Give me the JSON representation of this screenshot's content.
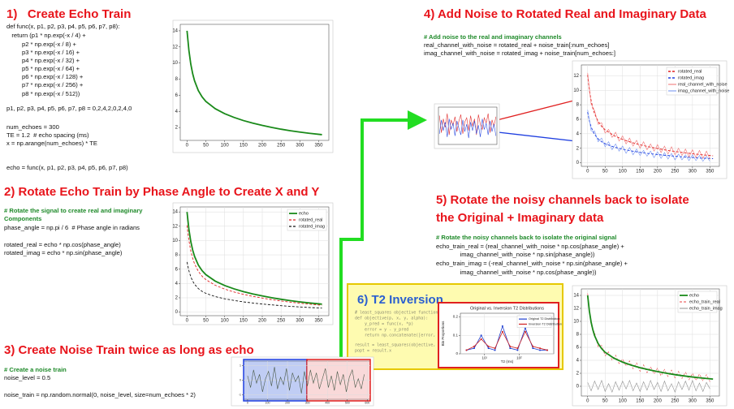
{
  "sections": [
    {
      "title_lines": [
        "1)   Create Echo Train"
      ],
      "code": [
        "def func(x, p1, p2, p3, p4, p5, p6, p7, p8):",
        "   return (p1 * np.exp(-x / 4) +",
        "         p2 * np.exp(-x / 8) +",
        "         p3 * np.exp(-x / 16) +",
        "         p4 * np.exp(-x / 32) +",
        "         p5 * np.exp(-x / 64) +",
        "         p6 * np.exp(-x / 128) +",
        "         p7 * np.exp(-x / 256) +",
        "         p8 * np.exp(-x / 512))",
        "p1, p2, p3, p4, p5, p6, p7, p8 = 0,2,4,2,0,2,4,0",
        "num_echoes = 300",
        "TE = 1.2  # echo spacing (ms)",
        "x = np.arange(num_echoes) * TE",
        "echo = func(x, p1, p2, p3, p4, p5, p6, p7, p8)"
      ]
    },
    {
      "title_lines": [
        "2) Rotate Echo Train by Phase Angle to Create X and Y"
      ],
      "code": [
        "# Rotate the signal to create real and imaginary",
        "# Components",
        "phase_angle = np.pi / 6  # Phase angle in radians",
        "rotated_real = echo * np.cos(phase_angle)",
        "rotated_imag = echo * np.sin(phase_angle)"
      ]
    },
    {
      "title_lines": [
        "3) Create Noise Train twice as long as echo"
      ],
      "code": [
        "# Create a noise train",
        "noise_level = 0.5",
        "noise_train = np.random.normal(0, noise_level, size=num_echoes * 2)"
      ]
    },
    {
      "title_lines": [
        "4) Add Noise to Rotated Real and Imaginary Data"
      ],
      "code": [
        "# Add noise to the real and imaginary channels",
        "real_channel_with_noise = rotated_real + noise_train[:num_echoes]",
        "imag_channel_with_noise = rotated_imag + noise_train[num_echoes:]"
      ]
    },
    {
      "title_lines": [
        "5) Rotate the noisy channels back to isolate",
        "the Original + Imaginary data"
      ],
      "code": [
        "# Rotate the noisy channels back to isolate the original signal",
        "echo_train_real = (real_channel_with_noise * np.cos(phase_angle) +",
        "              imag_channel_with_noise * np.sin(phase_angle))",
        "echo_train_imag = (-real_channel_with_noise * np.sin(phase_angle) +",
        "              imag_channel_with_noise * np.cos(phase_angle))"
      ]
    },
    {
      "title_lines": [
        "6) T2 Inversion"
      ],
      "code": [
        "# least_squares objective function to m",
        "def objective(p, x, y, alpha):",
        "    y_pred = func(x, *p)",
        "    error = y - y_pred",
        "    return np.concatenate([error, np.sqr",
        "result = least_squares(objective, p0, ar",
        "popt = result.x"
      ]
    }
  ],
  "chart_data": [
    {
      "type": "line",
      "x": [
        0,
        5,
        10,
        15,
        20,
        30,
        40,
        50,
        75,
        100,
        125,
        150,
        175,
        200,
        225,
        250,
        275,
        300,
        325,
        358.8
      ],
      "xlim": [
        -18,
        377
      ],
      "ylim": [
        0.4,
        14.8
      ],
      "xticks": [
        0,
        50,
        100,
        150,
        200,
        250,
        300,
        350
      ],
      "yticks": [
        2,
        4,
        6,
        8,
        10,
        12,
        14
      ],
      "grid": false,
      "series": [
        {
          "color": "#1a8a1a",
          "width": 1.8,
          "values": [
            14,
            11.56,
            9.87,
            8.68,
            7.79,
            6.58,
            5.8,
            5.24,
            4.33,
            3.72,
            3.25,
            2.86,
            2.54,
            2.26,
            2.01,
            1.79,
            1.6,
            1.43,
            1.28,
            1.11
          ]
        }
      ]
    },
    {
      "type": "line",
      "x": [
        0,
        5,
        10,
        15,
        20,
        30,
        40,
        50,
        75,
        100,
        125,
        150,
        175,
        200,
        225,
        250,
        275,
        300,
        325,
        358.8
      ],
      "xlim": [
        -18,
        377
      ],
      "ylim": [
        -0.5,
        14.7
      ],
      "xticks": [
        0,
        50,
        100,
        150,
        200,
        250,
        300,
        350
      ],
      "yticks": [
        0,
        2,
        4,
        6,
        8,
        10,
        12,
        14
      ],
      "grid": true,
      "legend": "upper right",
      "series": [
        {
          "name": "echo",
          "color": "#1a8a1a",
          "width": 1.8,
          "values": [
            14,
            11.56,
            9.87,
            8.68,
            7.79,
            6.58,
            5.8,
            5.24,
            4.33,
            3.72,
            3.25,
            2.86,
            2.54,
            2.26,
            2.01,
            1.79,
            1.6,
            1.43,
            1.28,
            1.11
          ]
        },
        {
          "name": "rotated_real",
          "color": "#e02020",
          "width": 0.9,
          "style": "dashed",
          "values": [
            12.12,
            10.01,
            8.55,
            7.52,
            6.75,
            5.7,
            5.02,
            4.54,
            3.75,
            3.22,
            2.81,
            2.48,
            2.2,
            1.96,
            1.74,
            1.55,
            1.39,
            1.24,
            1.11,
            0.96
          ]
        },
        {
          "name": "rotated_imag",
          "color": "#111111",
          "width": 0.9,
          "style": "dashed",
          "values": [
            7,
            5.78,
            4.94,
            4.34,
            3.9,
            3.29,
            2.9,
            2.62,
            2.17,
            1.86,
            1.63,
            1.43,
            1.27,
            1.13,
            1.01,
            0.9,
            0.8,
            0.72,
            0.64,
            0.56
          ]
        }
      ]
    },
    {
      "type": "line",
      "x": [
        0,
        15,
        30,
        45,
        60,
        75,
        90,
        105,
        120,
        135,
        150,
        165,
        180,
        195,
        210,
        225,
        240,
        255,
        270,
        285,
        300,
        315,
        330,
        345,
        360,
        375,
        390,
        405,
        420,
        435,
        450,
        465,
        480,
        495,
        510,
        525,
        540,
        555,
        570,
        585
      ],
      "xlim": [
        -20,
        615
      ],
      "ylim": [
        -1.3,
        1.3
      ],
      "xticks": [
        0,
        100,
        200,
        300,
        400,
        500,
        600
      ],
      "yticks": [
        -1,
        0,
        1
      ],
      "grid": true,
      "series": [
        {
          "color": "#4a5a4a",
          "width": 0.6,
          "values": [
            0.3,
            -0.5,
            0.7,
            -0.2,
            0.4,
            -0.8,
            0.1,
            0.6,
            -0.4,
            0.9,
            -0.6,
            0.2,
            -0.3,
            0.8,
            -0.7,
            0.5,
            -0.1,
            0.3,
            -0.9,
            0.6,
            -0.4,
            0.7,
            -0.2,
            0.5,
            -0.6,
            0.1,
            0.8,
            -0.5,
            0.3,
            -0.7,
            0.6,
            -0.3,
            0.4,
            -0.8,
            0.2,
            0.7,
            -0.5,
            0.1,
            -0.6,
            0.4
          ]
        }
      ]
    },
    {
      "type": "line",
      "x": [
        0,
        10,
        20,
        30,
        40,
        50,
        60,
        70,
        80,
        90,
        100,
        110,
        120,
        130,
        140,
        150,
        160,
        170,
        180,
        190,
        200,
        210,
        220,
        230,
        240,
        250,
        260,
        270,
        280,
        290
      ],
      "xlim": [
        -5,
        295
      ],
      "ylim": [
        -1.5,
        2
      ],
      "grid": false,
      "series": [
        {
          "color": "#e03030",
          "width": 0.6,
          "values": [
            1.2,
            -0.4,
            0.9,
            0.1,
            1.4,
            -0.6,
            0.8,
            0.3,
            1.1,
            -0.3,
            0.7,
            1.3,
            -0.5,
            0.6,
            1,
            -0.2,
            1.2,
            0.2,
            0.9,
            -0.6,
            1.3,
            0.4,
            -0.1,
            1,
            0.5,
            1.4,
            -0.4,
            0.8,
            0.2,
            1.1
          ]
        },
        {
          "color": "#3050e0",
          "width": 0.6,
          "values": [
            -0.5,
            0.8,
            -0.2,
            0.6,
            -0.8,
            0.9,
            -0.1,
            0.5,
            -0.7,
            0.7,
            0,
            -0.6,
            0.8,
            -0.3,
            0.4,
            -0.9,
            0.6,
            -0.2,
            0.7,
            -0.5,
            0.3,
            -0.8,
            0.9,
            -0.1,
            0.5,
            -0.6,
            0.7,
            -0.3,
            0.4,
            -0.7
          ]
        }
      ]
    },
    {
      "type": "line",
      "x": [
        0,
        5,
        10,
        15,
        20,
        30,
        40,
        50,
        75,
        100,
        125,
        150,
        175,
        200,
        225,
        250,
        275,
        300,
        325,
        358.8
      ],
      "xlim": [
        -18,
        377
      ],
      "ylim": [
        -0.5,
        13.5
      ],
      "xticks": [
        0,
        50,
        100,
        150,
        200,
        250,
        300,
        350
      ],
      "yticks": [
        0,
        2,
        4,
        6,
        8,
        10,
        12
      ],
      "grid": true,
      "legend": "upper right",
      "series": [
        {
          "name": "rotated_real",
          "color": "#e02020",
          "width": 1,
          "style": "dashed",
          "values": [
            12.12,
            10.01,
            8.55,
            7.52,
            6.75,
            5.7,
            5.02,
            4.54,
            3.75,
            3.22,
            2.81,
            2.48,
            2.2,
            1.96,
            1.74,
            1.55,
            1.39,
            1.24,
            1.11,
            0.96
          ]
        },
        {
          "name": "rotated_imag",
          "color": "#2040e0",
          "width": 1,
          "style": "dashed",
          "values": [
            7,
            5.78,
            4.94,
            4.34,
            3.9,
            3.29,
            2.9,
            2.62,
            2.17,
            1.86,
            1.63,
            1.43,
            1.27,
            1.13,
            1.01,
            0.9,
            0.8,
            0.72,
            0.64,
            0.56
          ]
        },
        {
          "name": "real_channel_with_noise",
          "color": "#f07070",
          "width": 0.6,
          "x": [
            0,
            10,
            20,
            30,
            40,
            50,
            60,
            70,
            80,
            90,
            100,
            110,
            120,
            130,
            140,
            150,
            160,
            170,
            180,
            190,
            200,
            210,
            220,
            230,
            240,
            250,
            260,
            270,
            280,
            290,
            300,
            310,
            320,
            330,
            340,
            350
          ],
          "values": [
            12.4,
            8.1,
            7.2,
            5.3,
            5.5,
            4.1,
            4.6,
            3.5,
            4.2,
            3,
            3.7,
            2.6,
            3.4,
            2.3,
            3.1,
            2,
            2.9,
            1.8,
            2.6,
            1.6,
            2.5,
            1.4,
            2.3,
            1.2,
            2.2,
            1.1,
            2,
            1,
            1.9,
            0.8,
            1.8,
            0.7,
            1.7,
            0.6,
            1.6,
            0.5
          ]
        },
        {
          "name": "imag_channel_with_noise",
          "color": "#7090f0",
          "width": 0.6,
          "x": [
            0,
            10,
            20,
            30,
            40,
            50,
            60,
            70,
            80,
            90,
            100,
            110,
            120,
            130,
            140,
            150,
            160,
            170,
            180,
            190,
            200,
            210,
            220,
            230,
            240,
            250,
            260,
            270,
            280,
            290,
            300,
            310,
            320,
            330,
            340,
            350
          ],
          "values": [
            7.3,
            4.4,
            4.4,
            2.9,
            3.4,
            2.2,
            2.9,
            1.8,
            2.6,
            1.6,
            2.3,
            1.3,
            2.1,
            1.1,
            1.9,
            1,
            1.7,
            0.9,
            1.6,
            0.7,
            1.5,
            0.6,
            1.4,
            0.5,
            1.3,
            0.4,
            1.2,
            0.4,
            1.1,
            0.3,
            1.1,
            0.3,
            1,
            0.2,
            0.9,
            0.2
          ]
        }
      ]
    },
    {
      "type": "line",
      "title": "Original vs. Inversion T2 Distributions",
      "xlabel": "T2 (ms)",
      "ylabel": "Bin Proportions",
      "xlog": true,
      "x": [
        3,
        5,
        8,
        13,
        20,
        33,
        55,
        90,
        150,
        250,
        400,
        650
      ],
      "xlim": [
        2,
        1000
      ],
      "ylim": [
        0,
        0.22
      ],
      "xticks": [
        {
          "value": 10,
          "label": "10¹"
        },
        {
          "value": 100,
          "label": "10²"
        }
      ],
      "yticks": [
        0,
        0.1,
        0.2
      ],
      "grid": true,
      "legend": "upper right",
      "series": [
        {
          "name": "Original T2 Distribution",
          "color": "#1f3fd0",
          "width": 0.8,
          "marker": true,
          "values": [
            0.02,
            0.03,
            0.1,
            0.03,
            0.02,
            0.15,
            0.03,
            0.02,
            0.14,
            0.03,
            0.02,
            0.02
          ]
        },
        {
          "name": "Inversion T2 Distribution",
          "color": "#d02020",
          "width": 0.8,
          "marker": true,
          "values": [
            0.02,
            0.04,
            0.08,
            0.04,
            0.03,
            0.12,
            0.04,
            0.03,
            0.12,
            0.04,
            0.03,
            0.02
          ]
        }
      ]
    },
    {
      "type": "line",
      "x": [
        0,
        10,
        20,
        30,
        40,
        50,
        60,
        70,
        80,
        90,
        100,
        110,
        120,
        130,
        140,
        150,
        160,
        170,
        180,
        190,
        200,
        210,
        220,
        230,
        240,
        250,
        260,
        270,
        280,
        290,
        300,
        310,
        320,
        330,
        340,
        350
      ],
      "xlim": [
        -18,
        377
      ],
      "ylim": [
        -1.5,
        15
      ],
      "xticks": [
        0,
        50,
        100,
        150,
        200,
        250,
        300,
        350
      ],
      "yticks": [
        0,
        2,
        4,
        6,
        8,
        10,
        12,
        14
      ],
      "grid": true,
      "legend": "upper right",
      "series": [
        {
          "name": "echo",
          "color": "#1a8a1a",
          "width": 1.8,
          "x": [
            0,
            5,
            10,
            15,
            20,
            30,
            40,
            50,
            75,
            100,
            125,
            150,
            175,
            200,
            225,
            250,
            275,
            300,
            325,
            358.8
          ],
          "values": [
            14,
            11.56,
            9.87,
            8.68,
            7.79,
            6.58,
            5.8,
            5.24,
            4.33,
            3.72,
            3.25,
            2.86,
            2.54,
            2.26,
            2.01,
            1.79,
            1.6,
            1.43,
            1.28,
            1.11
          ]
        },
        {
          "name": "echo_train_real",
          "color": "#e84040",
          "width": 0.6,
          "style": "dashed",
          "values": [
            14.3,
            9.4,
            8.2,
            6.1,
            6.3,
            4.7,
            5.3,
            4,
            4.8,
            3.5,
            4.2,
            3.1,
            3.9,
            2.7,
            3.6,
            2.3,
            3.3,
            2.1,
            3,
            1.9,
            2.8,
            1.6,
            2.6,
            1.5,
            2.5,
            1.3,
            2.3,
            1.2,
            2.2,
            1,
            2,
            0.9,
            1.9,
            0.8,
            1.8,
            0.7
          ]
        },
        {
          "name": "echo_train_imag",
          "color": "#909090",
          "width": 0.6,
          "values": [
            0.6,
            -0.7,
            0.8,
            -0.5,
            0.9,
            -0.8,
            0.4,
            -0.9,
            0.7,
            -0.6,
            0.8,
            -0.4,
            0.9,
            -0.7,
            0.5,
            -0.8,
            0.7,
            -0.6,
            0.9,
            -0.5,
            0.6,
            -0.8,
            0.8,
            -0.7,
            0.4,
            -0.9,
            0.7,
            -0.5,
            0.8,
            -0.6,
            0.9,
            -0.7,
            0.5,
            -0.8,
            0.6,
            -0.4
          ]
        }
      ]
    }
  ]
}
